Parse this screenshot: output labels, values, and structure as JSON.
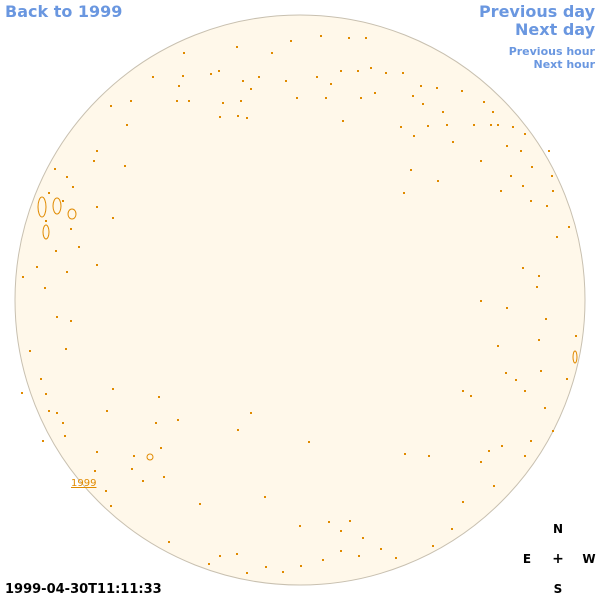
{
  "nav": {
    "back": "Back to 1999",
    "previous_day": "Previous day",
    "next_day": "Next day",
    "previous_hour": "Previous hour",
    "next_hour": "Next hour"
  },
  "compass": {
    "north": "N",
    "east": "E",
    "center": "+",
    "west": "W",
    "south": "S"
  },
  "timestamp": "1999-04-30T11:11:33",
  "year_label": "1999",
  "colors": {
    "link": "#6a97e0",
    "disk_fill": "#fff8ea",
    "disk_border": "#c8c0b0",
    "contour": "#e08a00"
  }
}
